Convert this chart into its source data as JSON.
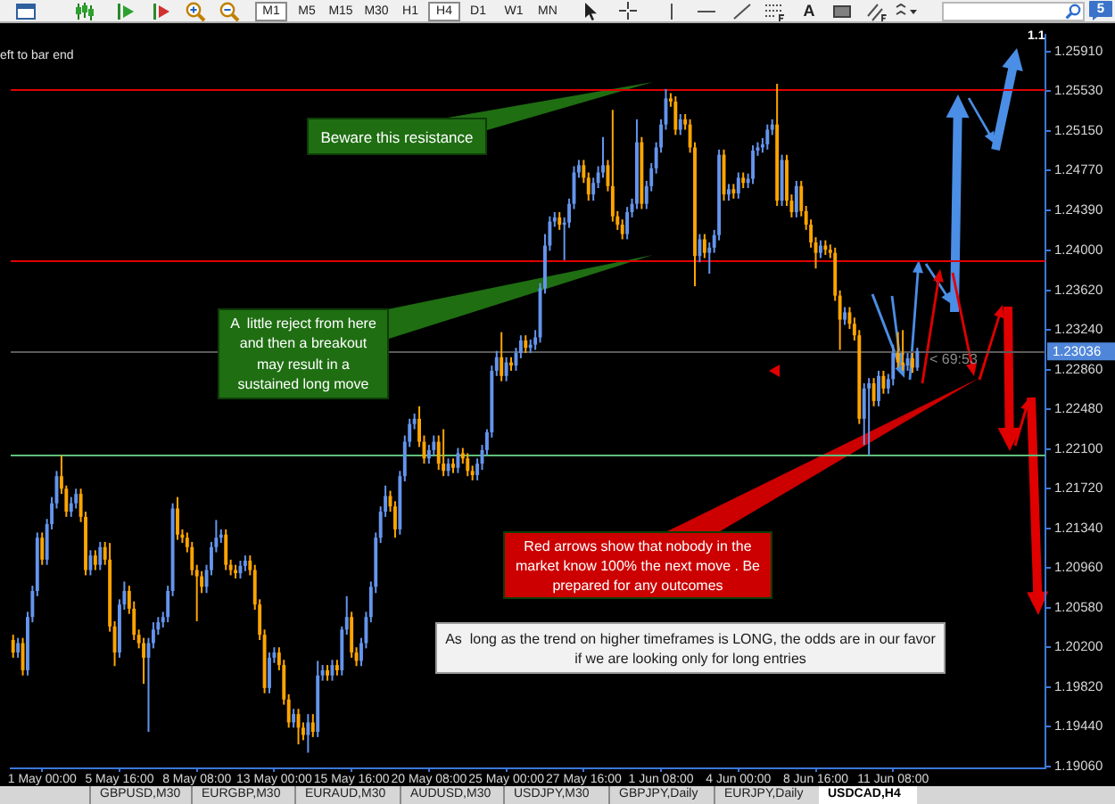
{
  "chart_data": {
    "type": "candlestick",
    "categories": [
      null,
      null,
      null,
      null,
      null,
      null,
      "1 May 00:00",
      null,
      null,
      null,
      null,
      null,
      null,
      null,
      null,
      null,
      null,
      null,
      null,
      null,
      null,
      null,
      "5 May 16:00",
      null,
      null,
      null,
      null,
      null,
      null,
      null,
      null,
      null,
      null,
      null,
      null,
      null,
      null,
      null,
      "8 May 08:00",
      null,
      null,
      null,
      null,
      null,
      null,
      null,
      null,
      null,
      null,
      null,
      null,
      null,
      null,
      null,
      "13 May 00:00",
      null,
      null,
      null,
      null,
      null,
      null,
      null,
      null,
      null,
      null,
      null,
      null,
      null,
      null,
      null,
      "15 May 16:00",
      null,
      null,
      null,
      null,
      null,
      null,
      null,
      null,
      null,
      null,
      null,
      null,
      null,
      null,
      null,
      "20 May 08:00",
      null,
      null,
      null,
      null,
      null,
      null,
      null,
      null,
      null,
      null,
      null,
      null,
      null,
      null,
      null,
      "25 May 00:00",
      null,
      null,
      null,
      null,
      null,
      null,
      null,
      null,
      null,
      null,
      null,
      null,
      null,
      null,
      null,
      "27 May 16:00",
      null,
      null,
      null,
      null,
      null,
      null,
      null,
      null,
      null,
      null,
      null,
      null,
      null,
      null,
      null,
      "1 Jun 08:00",
      null,
      null,
      null,
      null,
      null,
      null,
      null,
      null,
      null,
      null,
      null,
      null,
      null,
      null,
      null,
      "4 Jun 00:00",
      null,
      null,
      null,
      null,
      null,
      null,
      null,
      null,
      null,
      null,
      null,
      null,
      null,
      null,
      null,
      "8 Jun 16:00",
      null,
      null,
      null,
      null,
      null,
      null,
      null,
      null,
      null,
      null,
      null,
      null,
      null,
      null,
      null,
      "11 Jun 08:00",
      null,
      null,
      null,
      null,
      null,
      null,
      null,
      null,
      null,
      null,
      null,
      null,
      null,
      null,
      null,
      null,
      null,
      null,
      null,
      null,
      null,
      null,
      null,
      null,
      null,
      null,
      null,
      null,
      null,
      null,
      null
    ],
    "ohlc": [
      [
        1.2027,
        1.2032,
        1.201,
        1.2015
      ],
      [
        1.2015,
        1.2029,
        1.201,
        1.2024
      ],
      [
        1.2024,
        1.2029,
        1.1993,
        1.1998
      ],
      [
        1.1998,
        1.2054,
        1.1993,
        1.2049
      ],
      [
        1.2049,
        1.2079,
        1.2044,
        1.2074
      ],
      [
        1.2074,
        1.213,
        1.2069,
        1.2125
      ],
      [
        1.2125,
        1.213,
        1.2099,
        1.2104
      ],
      [
        1.2104,
        1.2143,
        1.2099,
        1.2138
      ],
      [
        1.2138,
        1.2164,
        1.2133,
        1.2158
      ],
      [
        1.2158,
        1.2189,
        1.2153,
        1.2184
      ],
      [
        1.2184,
        1.2204,
        1.2167,
        1.2172
      ],
      [
        1.2172,
        1.2175,
        1.2145,
        1.215
      ],
      [
        1.215,
        1.2164,
        1.2145,
        1.2158
      ],
      [
        1.2158,
        1.2172,
        1.2153,
        1.2167
      ],
      [
        1.2167,
        1.2172,
        1.214,
        1.2145
      ],
      [
        1.2145,
        1.215,
        1.2089,
        1.2094
      ],
      [
        1.2094,
        1.2113,
        1.2089,
        1.2108
      ],
      [
        1.2108,
        1.2113,
        1.2094,
        1.2099
      ],
      [
        1.2099,
        1.2121,
        1.2094,
        1.2116
      ],
      [
        1.2116,
        1.2121,
        1.2099,
        1.2104
      ],
      [
        1.2104,
        1.212,
        1.2035,
        1.204
      ],
      [
        1.204,
        1.2045,
        1.2002,
        1.2015
      ],
      [
        1.2015,
        1.2066,
        1.201,
        1.2061
      ],
      [
        1.2061,
        1.2083,
        1.2056,
        1.2074
      ],
      [
        1.2074,
        1.2079,
        1.2052,
        1.2057
      ],
      [
        1.2057,
        1.2064,
        1.2027,
        1.2032
      ],
      [
        1.2032,
        1.2037,
        1.2019,
        1.2024
      ],
      [
        1.2024,
        1.2029,
        1.1985,
        1.201
      ],
      [
        1.201,
        1.2029,
        1.1939,
        1.2024
      ],
      [
        1.2024,
        1.2044,
        1.2019,
        1.2037
      ],
      [
        1.2037,
        1.2049,
        1.2032,
        1.2044
      ],
      [
        1.2044,
        1.2054,
        1.2039,
        1.2049
      ],
      [
        1.2049,
        1.2079,
        1.2044,
        1.2074
      ],
      [
        1.2074,
        1.2158,
        1.2069,
        1.2153
      ],
      [
        1.2153,
        1.2164,
        1.2123,
        1.2128
      ],
      [
        1.2128,
        1.2133,
        1.212,
        1.2125
      ],
      [
        1.2125,
        1.213,
        1.2111,
        1.2116
      ],
      [
        1.2116,
        1.2121,
        1.2089,
        1.2094
      ],
      [
        1.2094,
        1.2099,
        1.2045,
        1.2088
      ],
      [
        1.2088,
        1.2093,
        1.2072,
        1.2078
      ],
      [
        1.2078,
        1.2099,
        1.2072,
        1.2094
      ],
      [
        1.2094,
        1.2121,
        1.2089,
        1.2116
      ],
      [
        1.2116,
        1.2142,
        1.2111,
        1.2125
      ],
      [
        1.2125,
        1.2133,
        1.212,
        1.2128
      ],
      [
        1.2128,
        1.2133,
        1.2094,
        1.2099
      ],
      [
        1.2099,
        1.2104,
        1.2089,
        1.2094
      ],
      [
        1.2094,
        1.2099,
        1.2086,
        1.2091
      ],
      [
        1.2091,
        1.2103,
        1.2086,
        1.2098
      ],
      [
        1.2098,
        1.2108,
        1.2093,
        1.2103
      ],
      [
        1.2103,
        1.2108,
        1.2089,
        1.2094
      ],
      [
        1.2094,
        1.2099,
        1.2056,
        1.2061
      ],
      [
        1.2061,
        1.2066,
        1.2027,
        1.2032
      ],
      [
        1.2032,
        1.2037,
        1.1976,
        1.1981
      ],
      [
        1.1981,
        1.2015,
        1.1976,
        1.201
      ],
      [
        1.201,
        1.202,
        1.2005,
        1.2015
      ],
      [
        1.2015,
        1.202,
        1.1998,
        1.2003
      ],
      [
        1.2003,
        1.2008,
        1.1965,
        1.197
      ],
      [
        1.197,
        1.1975,
        1.1943,
        1.1948
      ],
      [
        1.1948,
        1.1961,
        1.1943,
        1.1956
      ],
      [
        1.1956,
        1.1961,
        1.1927,
        1.1943
      ],
      [
        1.1943,
        1.1948,
        1.1931,
        1.1936
      ],
      [
        1.1936,
        1.1956,
        1.1919,
        1.1948
      ],
      [
        1.1948,
        1.1956,
        1.1934,
        1.1939
      ],
      [
        1.1939,
        1.2007,
        1.1934,
        1.1993
      ],
      [
        1.1993,
        1.2003,
        1.1988,
        1.1998
      ],
      [
        1.1998,
        1.2003,
        1.1988,
        1.1993
      ],
      [
        1.1993,
        1.2008,
        1.1988,
        1.2003
      ],
      [
        1.2003,
        1.2008,
        1.1993,
        1.1998
      ],
      [
        1.1998,
        1.204,
        1.1993,
        1.2037
      ],
      [
        1.2037,
        1.2069,
        1.2032,
        1.2049
      ],
      [
        1.2049,
        1.2054,
        1.201,
        1.2015
      ],
      [
        1.2015,
        1.202,
        1.2002,
        1.2007
      ],
      [
        1.2007,
        1.2029,
        1.2002,
        1.2024
      ],
      [
        1.2024,
        1.2054,
        1.2019,
        1.2049
      ],
      [
        1.2049,
        1.2083,
        1.2044,
        1.2078
      ],
      [
        1.2078,
        1.213,
        1.2072,
        1.2125
      ],
      [
        1.2125,
        1.2155,
        1.212,
        1.215
      ],
      [
        1.215,
        1.2175,
        1.2145,
        1.2165
      ],
      [
        1.2165,
        1.217,
        1.215,
        1.2155
      ],
      [
        1.2155,
        1.216,
        1.2125,
        1.2133
      ],
      [
        1.2133,
        1.2189,
        1.2128,
        1.2184
      ],
      [
        1.2184,
        1.2223,
        1.2179,
        1.2217
      ],
      [
        1.2217,
        1.2239,
        1.2212,
        1.2234
      ],
      [
        1.2234,
        1.2244,
        1.2229,
        1.2239
      ],
      [
        1.2239,
        1.2251,
        1.2212,
        1.2217
      ],
      [
        1.2217,
        1.2223,
        1.2196,
        1.2201
      ],
      [
        1.2201,
        1.2214,
        1.2196,
        1.2209
      ],
      [
        1.2209,
        1.2223,
        1.2204,
        1.2217
      ],
      [
        1.2217,
        1.2223,
        1.219,
        1.2196
      ],
      [
        1.2196,
        1.2229,
        1.2184,
        1.2189
      ],
      [
        1.2189,
        1.2201,
        1.2184,
        1.2196
      ],
      [
        1.2196,
        1.2201,
        1.2187,
        1.2192
      ],
      [
        1.2192,
        1.2211,
        1.2187,
        1.2206
      ],
      [
        1.2206,
        1.2211,
        1.2196,
        1.2201
      ],
      [
        1.2201,
        1.2206,
        1.2184,
        1.2189
      ],
      [
        1.2189,
        1.2194,
        1.218,
        1.2185
      ],
      [
        1.2185,
        1.2201,
        1.218,
        1.2196
      ],
      [
        1.2196,
        1.2214,
        1.219,
        1.2209
      ],
      [
        1.2209,
        1.2229,
        1.2204,
        1.2226
      ],
      [
        1.2226,
        1.229,
        1.2221,
        1.2285
      ],
      [
        1.2285,
        1.2304,
        1.228,
        1.2298
      ],
      [
        1.2298,
        1.2322,
        1.2275,
        1.228
      ],
      [
        1.228,
        1.2298,
        1.2275,
        1.2293
      ],
      [
        1.2293,
        1.2298,
        1.2285,
        1.229
      ],
      [
        1.229,
        1.2307,
        1.2285,
        1.2302
      ],
      [
        1.2302,
        1.2319,
        1.2297,
        1.2314
      ],
      [
        1.2314,
        1.2319,
        1.2302,
        1.2307
      ],
      [
        1.2307,
        1.2315,
        1.2302,
        1.231
      ],
      [
        1.231,
        1.2324,
        1.2305,
        1.2317
      ],
      [
        1.2317,
        1.2369,
        1.2312,
        1.2364
      ],
      [
        1.2364,
        1.2416,
        1.2359,
        1.2405
      ],
      [
        1.2405,
        1.2433,
        1.24,
        1.2428
      ],
      [
        1.2428,
        1.2437,
        1.2423,
        1.2432
      ],
      [
        1.2432,
        1.2437,
        1.242,
        1.2425
      ],
      [
        1.2425,
        1.2432,
        1.2391,
        1.2427
      ],
      [
        1.2427,
        1.245,
        1.2422,
        1.2445
      ],
      [
        1.2445,
        1.2481,
        1.244,
        1.2475
      ],
      [
        1.2475,
        1.2487,
        1.247,
        1.2482
      ],
      [
        1.2482,
        1.2487,
        1.2465,
        1.247
      ],
      [
        1.247,
        1.2475,
        1.2448,
        1.2454
      ],
      [
        1.2454,
        1.247,
        1.2448,
        1.2465
      ],
      [
        1.2465,
        1.2481,
        1.246,
        1.2475
      ],
      [
        1.2475,
        1.2509,
        1.247,
        1.2482
      ],
      [
        1.2482,
        1.2487,
        1.2457,
        1.2462
      ],
      [
        1.2462,
        1.2535,
        1.2428,
        1.2433
      ],
      [
        1.2433,
        1.2438,
        1.242,
        1.2425
      ],
      [
        1.2425,
        1.243,
        1.2411,
        1.2416
      ],
      [
        1.2416,
        1.2442,
        1.2411,
        1.2437
      ],
      [
        1.2437,
        1.245,
        1.2432,
        1.2445
      ],
      [
        1.2445,
        1.2526,
        1.244,
        1.2504
      ],
      [
        1.2504,
        1.2509,
        1.244,
        1.2445
      ],
      [
        1.2445,
        1.2467,
        1.244,
        1.2462
      ],
      [
        1.2462,
        1.2484,
        1.2457,
        1.2479
      ],
      [
        1.2479,
        1.2504,
        1.2474,
        1.2499
      ],
      [
        1.2499,
        1.2526,
        1.2494,
        1.2521
      ],
      [
        1.2521,
        1.2555,
        1.2516,
        1.2546
      ],
      [
        1.2546,
        1.2551,
        1.2538,
        1.2543
      ],
      [
        1.2543,
        1.2548,
        1.2511,
        1.2516
      ],
      [
        1.2516,
        1.2531,
        1.2511,
        1.2526
      ],
      [
        1.2526,
        1.2531,
        1.2516,
        1.2521
      ],
      [
        1.2521,
        1.2526,
        1.2494,
        1.2499
      ],
      [
        1.2499,
        1.2504,
        1.2366,
        1.2395
      ],
      [
        1.2395,
        1.2416,
        1.2389,
        1.2411
      ],
      [
        1.2411,
        1.2416,
        1.2393,
        1.2398
      ],
      [
        1.2398,
        1.2408,
        1.2378,
        1.2403
      ],
      [
        1.2403,
        1.242,
        1.2398,
        1.2415
      ],
      [
        1.2415,
        1.2497,
        1.241,
        1.2492
      ],
      [
        1.2492,
        1.2497,
        1.2448,
        1.2454
      ],
      [
        1.2454,
        1.2464,
        1.2448,
        1.2459
      ],
      [
        1.2459,
        1.2464,
        1.245,
        1.2455
      ],
      [
        1.2455,
        1.2475,
        1.245,
        1.247
      ],
      [
        1.247,
        1.2475,
        1.246,
        1.2465
      ],
      [
        1.2465,
        1.2474,
        1.246,
        1.2469
      ],
      [
        1.2469,
        1.2501,
        1.2464,
        1.2496
      ],
      [
        1.2496,
        1.2504,
        1.2491,
        1.2499
      ],
      [
        1.2499,
        1.2508,
        1.2494,
        1.2502
      ],
      [
        1.2502,
        1.2521,
        1.2497,
        1.2516
      ],
      [
        1.2516,
        1.2526,
        1.2511,
        1.2521
      ],
      [
        1.2521,
        1.256,
        1.2443,
        1.2448
      ],
      [
        1.2448,
        1.2492,
        1.2443,
        1.2487
      ],
      [
        1.2487,
        1.2492,
        1.2443,
        1.2448
      ],
      [
        1.2448,
        1.2454,
        1.2432,
        1.2437
      ],
      [
        1.2437,
        1.2467,
        1.2432,
        1.2462
      ],
      [
        1.2462,
        1.2467,
        1.2433,
        1.2438
      ],
      [
        1.2438,
        1.2443,
        1.242,
        1.2425
      ],
      [
        1.2425,
        1.243,
        1.2403,
        1.2408
      ],
      [
        1.2408,
        1.2413,
        1.2383,
        1.2398
      ],
      [
        1.2398,
        1.241,
        1.2393,
        1.2405
      ],
      [
        1.2405,
        1.241,
        1.2396,
        1.2401
      ],
      [
        1.2401,
        1.2406,
        1.2393,
        1.2398
      ],
      [
        1.2398,
        1.2403,
        1.2352,
        1.2357
      ],
      [
        1.2357,
        1.2362,
        1.2305,
        1.2334
      ],
      [
        1.2334,
        1.2346,
        1.2329,
        1.2341
      ],
      [
        1.2341,
        1.2346,
        1.2325,
        1.233
      ],
      [
        1.233,
        1.2336,
        1.2314,
        1.2319
      ],
      [
        1.2319,
        1.2324,
        1.2234,
        1.2239
      ],
      [
        1.2239,
        1.2273,
        1.2214,
        1.2268
      ],
      [
        1.2268,
        1.2278,
        1.2204,
        1.2273
      ],
      [
        1.2273,
        1.2278,
        1.2251,
        1.2256
      ],
      [
        1.2256,
        1.2285,
        1.2251,
        1.228
      ],
      [
        1.228,
        1.2285,
        1.2263,
        1.2268
      ],
      [
        1.2268,
        1.2282,
        1.2263,
        1.2277
      ],
      [
        1.2277,
        1.231,
        1.2271,
        1.2302
      ],
      [
        1.2302,
        1.2322,
        1.2288,
        1.2293
      ],
      [
        1.2293,
        1.2324,
        1.2285,
        1.229
      ],
      [
        1.229,
        1.2302,
        1.2285,
        1.2297
      ],
      [
        1.2297,
        1.2302,
        1.2283,
        1.2288
      ],
      [
        1.2288,
        1.2307,
        1.2285,
        1.2304
      ],
      null,
      null,
      null,
      null,
      null,
      null,
      null,
      null,
      null,
      null,
      null,
      null,
      null,
      null,
      null,
      null,
      null,
      null,
      null,
      null,
      null,
      null,
      null,
      null,
      null,
      null
    ],
    "colors": [
      "#ffa500",
      "#6495ed",
      "#ffa500",
      "#6495ed",
      "#6495ed",
      "#6495ed",
      "#ffa500",
      "#6495ed",
      "#6495ed",
      "#6495ed",
      "#ffa500",
      "#ffa500",
      "#6495ed",
      "#6495ed",
      "#ffa500",
      "#ffa500",
      "#6495ed",
      "#ffa500",
      "#6495ed",
      "#ffa500",
      "#ffa500",
      "#ffa500",
      "#6495ed",
      "#6495ed",
      "#ffa500",
      "#ffa500",
      "#ffa500",
      "#ffa500",
      "#6495ed",
      "#6495ed",
      "#6495ed",
      "#6495ed",
      "#6495ed",
      "#6495ed",
      "#ffa500",
      "#ffa500",
      "#ffa500",
      "#ffa500",
      "#ffa500",
      "#ffa500",
      "#6495ed",
      "#6495ed",
      "#6495ed",
      "#6495ed",
      "#ffa500",
      "#ffa500",
      "#ffa500",
      "#6495ed",
      "#6495ed",
      "#ffa500",
      "#ffa500",
      "#ffa500",
      "#ffa500",
      "#6495ed",
      "#6495ed",
      "#ffa500",
      "#ffa500",
      "#ffa500",
      "#6495ed",
      "#ffa500",
      "#ffa500",
      "#6495ed",
      "#ffa500",
      "#6495ed",
      "#6495ed",
      "#ffa500",
      "#6495ed",
      "#ffa500",
      "#6495ed",
      "#6495ed",
      "#ffa500",
      "#ffa500",
      "#6495ed",
      "#6495ed",
      "#6495ed",
      "#6495ed",
      "#6495ed",
      "#6495ed",
      "#ffa500",
      "#ffa500",
      "#6495ed",
      "#6495ed",
      "#6495ed",
      "#6495ed",
      "#ffa500",
      "#ffa500",
      "#6495ed",
      "#6495ed",
      "#ffa500",
      "#ffa500",
      "#6495ed",
      "#ffa500",
      "#6495ed",
      "#ffa500",
      "#ffa500",
      "#ffa500",
      "#6495ed",
      "#6495ed",
      "#6495ed",
      "#6495ed",
      "#6495ed",
      "#ffa500",
      "#6495ed",
      "#ffa500",
      "#6495ed",
      "#6495ed",
      "#ffa500",
      "#6495ed",
      "#6495ed",
      "#6495ed",
      "#6495ed",
      "#6495ed",
      "#6495ed",
      "#ffa500",
      "#6495ed",
      "#6495ed",
      "#6495ed",
      "#6495ed",
      "#ffa500",
      "#ffa500",
      "#6495ed",
      "#6495ed",
      "#6495ed",
      "#ffa500",
      "#ffa500",
      "#ffa500",
      "#ffa500",
      "#6495ed",
      "#6495ed",
      "#6495ed",
      "#ffa500",
      "#6495ed",
      "#6495ed",
      "#6495ed",
      "#6495ed",
      "#6495ed",
      "#ffa500",
      "#ffa500",
      "#6495ed",
      "#ffa500",
      "#ffa500",
      "#ffa500",
      "#6495ed",
      "#ffa500",
      "#6495ed",
      "#6495ed",
      "#6495ed",
      "#ffa500",
      "#6495ed",
      "#ffa500",
      "#6495ed",
      "#ffa500",
      "#6495ed",
      "#6495ed",
      "#6495ed",
      "#6495ed",
      "#6495ed",
      "#6495ed",
      "#ffa500",
      "#6495ed",
      "#ffa500",
      "#ffa500",
      "#6495ed",
      "#ffa500",
      "#ffa500",
      "#ffa500",
      "#ffa500",
      "#6495ed",
      "#ffa500",
      "#ffa500",
      "#ffa500",
      "#ffa500",
      "#6495ed",
      "#ffa500",
      "#ffa500",
      "#ffa500",
      "#6495ed",
      "#6495ed",
      "#ffa500",
      "#6495ed",
      "#ffa500",
      "#6495ed",
      "#6495ed",
      "#ffa500",
      "#ffa500",
      "#6495ed",
      "#ffa500",
      "#6495ed",
      null,
      null,
      null,
      null,
      null,
      null,
      null,
      null,
      null,
      null,
      null,
      null,
      null,
      null,
      null,
      null,
      null,
      null,
      null,
      null,
      null,
      null,
      null,
      null,
      null,
      null
    ],
    "ylim": [
      1.1904,
      1.2607
    ],
    "yticks": [
      {
        "value": 1.2591,
        "label": "1.25910"
      },
      {
        "value": 1.2553,
        "label": "1.25530"
      },
      {
        "value": 1.2515,
        "label": "1.25150"
      },
      {
        "value": 1.2477,
        "label": "1.24770"
      },
      {
        "value": 1.2439,
        "label": "1.24390"
      },
      {
        "value": 1.24,
        "label": "1.24000"
      },
      {
        "value": 1.2362,
        "label": "1.23620"
      },
      {
        "value": 1.2324,
        "label": "1.23240"
      },
      {
        "value": 1.2286,
        "label": "1.22860"
      },
      {
        "value": 1.2248,
        "label": "1.22480"
      },
      {
        "value": 1.221,
        "label": "1.22100"
      },
      {
        "value": 1.2172,
        "label": "1.21720"
      },
      {
        "value": 1.2134,
        "label": "1.21340"
      },
      {
        "value": 1.2096,
        "label": "1.20960"
      },
      {
        "value": 1.2058,
        "label": "1.20580"
      },
      {
        "value": 1.202,
        "label": "1.20200"
      },
      {
        "value": 1.1982,
        "label": "1.19820"
      },
      {
        "value": 1.1944,
        "label": "1.19440"
      },
      {
        "value": 1.1906,
        "label": "1.19060"
      }
    ],
    "ref_lines": [
      {
        "axis": "y",
        "value": 1.2555,
        "color": "#e00000"
      },
      {
        "axis": "y",
        "value": 1.2391,
        "color": "#e00000"
      },
      {
        "axis": "y",
        "value": 1.2204,
        "color": "#5fbf7a"
      },
      {
        "axis": "y",
        "value": 1.23036,
        "label": "1.23036",
        "color": "#5a5a5a"
      }
    ],
    "annotations": [
      "Beware this resistance",
      "A  little reject from here and then a breakout may result in a sustained long move",
      "Red arrows show that nobody in the market know 100% the next move . Be prepared for any outcomes",
      "As  long as the trend on higher timeframes is LONG, the odds are in our favor if we are looking only for long entries",
      "< 69:53",
      "eft to bar end",
      "1.1",
      "M1",
      "M5",
      "M15",
      "M30",
      "H1",
      "H4",
      "D1",
      "W1",
      "MN",
      "GBPUSD,M30",
      "EURGBP,M30",
      "EURAUD,M30",
      "AUDUSD,M30",
      "USDJPY,M30",
      "GBPJPY,Daily",
      "EURJPY,Daily",
      "USDCAD,H4",
      "A",
      "5"
    ]
  }
}
